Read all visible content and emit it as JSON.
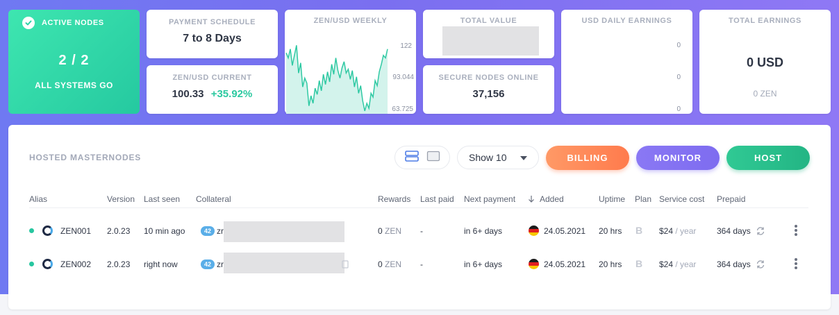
{
  "stats": {
    "active_nodes": {
      "label": "ACTIVE NODES",
      "count": "2 / 2",
      "status": "ALL SYSTEMS GO"
    },
    "payment_schedule": {
      "label": "PAYMENT SCHEDULE",
      "value": "7 to 8 Days"
    },
    "zen_usd_current": {
      "label": "ZEN/USD CURRENT",
      "price": "100.33",
      "change": "+35.92%"
    },
    "zen_usd_weekly": {
      "label": "ZEN/USD WEEKLY"
    },
    "total_value": {
      "label": "TOTAL VALUE"
    },
    "secure_nodes_online": {
      "label": "SECURE NODES ONLINE",
      "value": "37,156"
    },
    "usd_daily_earnings": {
      "label": "USD DAILY EARNINGS",
      "ticks": [
        "0",
        "0",
        "0"
      ]
    },
    "total_earnings": {
      "label": "TOTAL EARNINGS",
      "usd": "0 USD",
      "zen": "0 ZEN"
    }
  },
  "chart_data": {
    "type": "area",
    "title": "ZEN/USD WEEKLY",
    "y_ticks": [
      "122",
      "93.044",
      "63.725"
    ],
    "ylim": [
      63.725,
      122
    ],
    "values": [
      112,
      108,
      115,
      102,
      110,
      118,
      96,
      104,
      85,
      92,
      88,
      70,
      78,
      72,
      84,
      79,
      90,
      82,
      95,
      87,
      97,
      89,
      103,
      95,
      108,
      98,
      92,
      100,
      105,
      96,
      99,
      91,
      98,
      85,
      93,
      80,
      86,
      74,
      66,
      72,
      68,
      80,
      77,
      90,
      86,
      97,
      103,
      110,
      108,
      115
    ],
    "colors": {
      "line": "#2fc9a3",
      "fill": "#d3f3ec"
    }
  },
  "panel": {
    "title": "HOSTED MASTERNODES",
    "show_select": "Show 10",
    "buttons": {
      "billing": "BILLING",
      "monitor": "MONITOR",
      "host": "HOST"
    }
  },
  "table": {
    "columns": {
      "alias": "Alias",
      "version": "Version",
      "last_seen": "Last seen",
      "collateral": "Collateral",
      "rewards": "Rewards",
      "last_paid": "Last paid",
      "next_payment": "Next payment",
      "added": "Added",
      "uptime": "Uptime",
      "plan": "Plan",
      "service_cost": "Service cost",
      "prepaid": "Prepaid"
    },
    "rows": [
      {
        "alias": "ZEN001",
        "version": "2.0.23",
        "last_seen": "10 min ago",
        "collateral_badge": "42",
        "collateral": "zr",
        "rewards_value": "0",
        "rewards_unit": " ZEN",
        "last_paid": "-",
        "next_payment": "in 6+ days",
        "added": "24.05.2021",
        "uptime": "20 hrs",
        "plan": "B",
        "cost": "$24",
        "cost_period": " / year",
        "prepaid": "364 days"
      },
      {
        "alias": "ZEN002",
        "version": "2.0.23",
        "last_seen": "right now",
        "collateral_badge": "42",
        "collateral": "zr",
        "rewards_value": "0",
        "rewards_unit": " ZEN",
        "last_paid": "-",
        "next_payment": "in 6+ days",
        "added": "24.05.2021",
        "uptime": "20 hrs",
        "plan": "B",
        "cost": "$24",
        "cost_period": " / year",
        "prepaid": "364 days"
      }
    ]
  },
  "colors": {
    "accent_green": "#27c6a0",
    "billing": "#ff8a5c",
    "monitor": "#8372f2",
    "host": "#29bf8c"
  }
}
